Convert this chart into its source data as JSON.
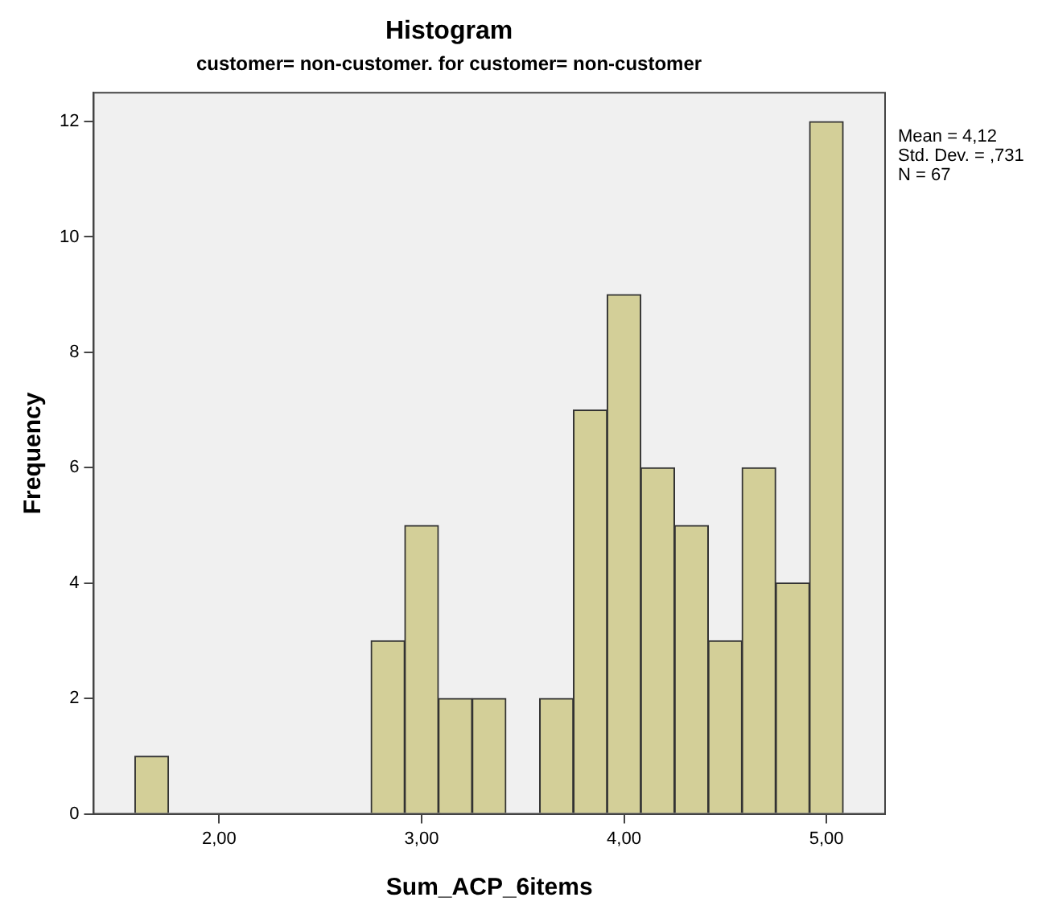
{
  "chart_data": {
    "type": "histogram",
    "title": "Histogram",
    "subtitle": "customer= non-customer. for customer= non-customer",
    "xlabel": "Sum_ACP_6items",
    "ylabel": "Frequency",
    "bins": [
      1.583,
      1.75,
      1.917,
      2.083,
      2.25,
      2.417,
      2.583,
      2.75,
      2.917,
      3.083,
      3.25,
      3.417,
      3.583,
      3.75,
      3.917,
      4.083,
      4.25,
      4.417,
      4.583,
      4.75,
      4.917,
      5.083
    ],
    "values": [
      1,
      0,
      0,
      0,
      0,
      0,
      0,
      3,
      5,
      2,
      2,
      0,
      2,
      7,
      9,
      6,
      5,
      3,
      6,
      4,
      12
    ],
    "color": "#d3cf98",
    "xlim": [
      1.38,
      5.29
    ],
    "xticks": [
      {
        "value": 2,
        "label": "2,00"
      },
      {
        "value": 3,
        "label": "3,00"
      },
      {
        "value": 4,
        "label": "4,00"
      },
      {
        "value": 5,
        "label": "5,00"
      }
    ],
    "ylim": [
      0,
      12.5
    ],
    "yticks": [
      0,
      2,
      4,
      6,
      8,
      10,
      12
    ],
    "annotations": [
      "Mean = 4,12",
      "Std. Dev. = ,731",
      "N = 67"
    ],
    "grid": false,
    "legend": false
  }
}
